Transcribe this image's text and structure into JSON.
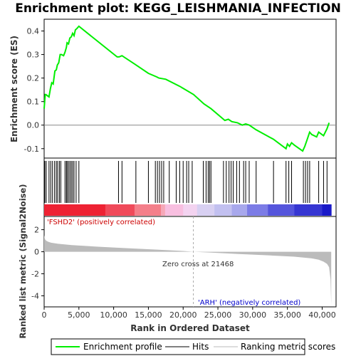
{
  "chart_data": {
    "type": "line",
    "title": "Enrichment plot: KEGG_LEISHMANIA_INFECTION",
    "top_panel": {
      "ylabel": "Enrichment score (ES)",
      "ylim": [
        -0.14,
        0.45
      ],
      "yticks": [
        -0.1,
        0.0,
        0.1,
        0.2,
        0.3,
        0.4
      ],
      "ytick_labels": [
        "-0.1",
        "0.0",
        "0.1",
        "0.2",
        "0.3",
        "0.4"
      ],
      "series": [
        {
          "name": "Enrichment profile",
          "color": "#00ee00",
          "x": [
            0,
            150,
            250,
            700,
            900,
            1100,
            1300,
            1550,
            1750,
            1900,
            2100,
            2300,
            2500,
            2800,
            3000,
            3200,
            3300,
            3500,
            3700,
            3900,
            4100,
            4300,
            4500,
            4700,
            5000,
            10500,
            10800,
            11200,
            13000,
            15000,
            16200,
            16500,
            17500,
            19500,
            21500,
            23000,
            24000,
            26000,
            26500,
            27000,
            27800,
            28500,
            29000,
            29500,
            30500,
            33000,
            34800,
            35000,
            35300,
            35600,
            36000,
            37200,
            37500,
            37800,
            38200,
            38500,
            39200,
            39500,
            40200,
            40700,
            41000
          ],
          "y": [
            0.07,
            0.13,
            0.13,
            0.12,
            0.155,
            0.18,
            0.175,
            0.23,
            0.235,
            0.255,
            0.265,
            0.3,
            0.3,
            0.295,
            0.31,
            0.33,
            0.35,
            0.345,
            0.37,
            0.375,
            0.39,
            0.38,
            0.405,
            0.41,
            0.42,
            0.29,
            0.29,
            0.295,
            0.26,
            0.22,
            0.205,
            0.2,
            0.195,
            0.165,
            0.13,
            0.09,
            0.07,
            0.02,
            0.025,
            0.015,
            0.01,
            0.0,
            0.005,
            0.0,
            -0.02,
            -0.06,
            -0.1,
            -0.08,
            -0.09,
            -0.075,
            -0.085,
            -0.11,
            -0.09,
            -0.065,
            -0.03,
            -0.04,
            -0.05,
            -0.03,
            -0.045,
            -0.015,
            0.01
          ]
        }
      ]
    },
    "hits": {
      "name": "Hits",
      "color": "#000000",
      "ranks": [
        100,
        300,
        700,
        950,
        1200,
        1500,
        1750,
        1950,
        2200,
        2400,
        3000,
        3200,
        3300,
        3500,
        3700,
        3900,
        4100,
        4300,
        4600,
        5000,
        10700,
        11200,
        13200,
        15000,
        16000,
        16300,
        16600,
        16900,
        17200,
        18000,
        19000,
        19500,
        20000,
        20500,
        20800,
        21300,
        22900,
        23300,
        23600,
        23800,
        24000,
        25800,
        26200,
        26600,
        26900,
        27200,
        27700,
        28100,
        28700,
        29000,
        29500,
        30500,
        33000,
        34800,
        35200,
        35600,
        37300,
        37600,
        37900,
        38200,
        39500,
        40200,
        40700
      ]
    },
    "heatmap_bar": {
      "segments": [
        {
          "end": 8800,
          "color": "#ee2233"
        },
        {
          "end": 13000,
          "color": "#f04a5a"
        },
        {
          "end": 16800,
          "color": "#f47f8a"
        },
        {
          "end": 17400,
          "color": "#f6a8b8"
        },
        {
          "end": 20000,
          "color": "#f8bfe0"
        },
        {
          "end": 22000,
          "color": "#f3d3f0"
        },
        {
          "end": 24500,
          "color": "#d8d0f2"
        },
        {
          "end": 27000,
          "color": "#c2c0f0"
        },
        {
          "end": 29200,
          "color": "#a8a8ec"
        },
        {
          "end": 32200,
          "color": "#7c7ce6"
        },
        {
          "end": 36000,
          "color": "#5555dc"
        },
        {
          "end": 40000,
          "color": "#3636d2"
        },
        {
          "end": 41300,
          "color": "#1a1ac8"
        }
      ]
    },
    "bottom_panel": {
      "ylabel": "Ranked list metric (Signal2Noise)",
      "ylim": [
        -5,
        3.2
      ],
      "yticks": [
        -4,
        -2,
        0,
        2
      ],
      "ytick_labels": [
        "-4",
        "-2",
        "0",
        "2"
      ],
      "metric_x": [
        0,
        100,
        300,
        600,
        1000,
        2000,
        4000,
        8000,
        12000,
        16000,
        20000,
        21468,
        24000,
        28000,
        32000,
        36000,
        38500,
        39500,
        40200,
        40700,
        41000,
        41200,
        41300
      ],
      "metric_y": [
        1.5,
        1.15,
        1.0,
        0.9,
        0.82,
        0.72,
        0.6,
        0.45,
        0.32,
        0.2,
        0.07,
        0.0,
        -0.08,
        -0.2,
        -0.32,
        -0.45,
        -0.6,
        -0.72,
        -0.9,
        -1.1,
        -1.4,
        -2.5,
        -4.8
      ],
      "color": "#bbbbbb"
    },
    "xlabel": "Rank in Ordered Dataset",
    "xlim": [
      0,
      42000
    ],
    "xticks": [
      0,
      5000,
      10000,
      15000,
      20000,
      25000,
      30000,
      35000,
      40000
    ],
    "xtick_labels": [
      "0",
      "5,000",
      "10,000",
      "15,000",
      "20,000",
      "25,000",
      "30,000",
      "35,000",
      "40,000"
    ],
    "annotations": {
      "positive": "'FSHD2' (positively correlated)",
      "negative": "'ARH' (negatively correlated)",
      "zero_cross": "Zero cross at 21468",
      "zero_cross_rank": 21468,
      "positive_color": "#cc0000",
      "negative_color": "#0000cc"
    },
    "legend": {
      "placement": "bottom",
      "items": [
        {
          "label": "Enrichment profile",
          "color": "#00ee00"
        },
        {
          "label": "Hits",
          "color": "#000000"
        },
        {
          "label": "Ranking metric scores",
          "color": "#bbbbbb"
        }
      ]
    }
  }
}
